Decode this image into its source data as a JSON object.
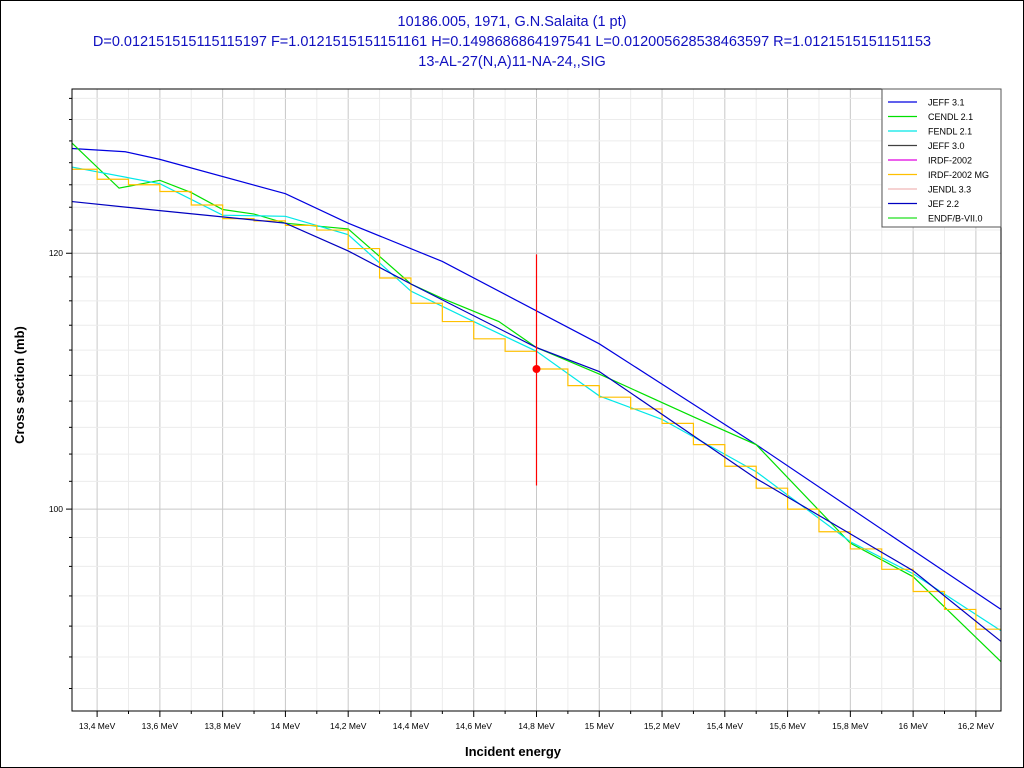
{
  "chart_data": {
    "type": "line",
    "title": [
      "10186.005, 1971, G.N.Salaita (1 pt)",
      "D=0.012151515115115197 F=1.0121515151151161 H=0.1498686864197541 L=0.012005628538463597 R=1.0121515151151153",
      "13-AL-27(N,A)11-NA-24,,SIG"
    ],
    "xlabel": "Incident energy",
    "ylabel": "Cross section (mb)",
    "xlim": [
      13.32,
      16.28
    ],
    "ylim": [
      86.6,
      134.9
    ],
    "yscale": "log",
    "grid": true,
    "legend_position": "top-right",
    "x_ticks": [
      {
        "v": 13.4,
        "label": "13,4 MeV"
      },
      {
        "v": 13.6,
        "label": "13,6 MeV"
      },
      {
        "v": 13.8,
        "label": "13,8 MeV"
      },
      {
        "v": 14.0,
        "label": "14 MeV"
      },
      {
        "v": 14.2,
        "label": "14,2 MeV"
      },
      {
        "v": 14.4,
        "label": "14,4 MeV"
      },
      {
        "v": 14.6,
        "label": "14,6 MeV"
      },
      {
        "v": 14.8,
        "label": "14,8 MeV"
      },
      {
        "v": 15.0,
        "label": "15 MeV"
      },
      {
        "v": 15.2,
        "label": "15,2 MeV"
      },
      {
        "v": 15.4,
        "label": "15,4 MeV"
      },
      {
        "v": 15.6,
        "label": "15,6 MeV"
      },
      {
        "v": 15.8,
        "label": "15,8 MeV"
      },
      {
        "v": 16.0,
        "label": "16 MeV"
      },
      {
        "v": 16.2,
        "label": "16,2 MeV"
      }
    ],
    "y_ticks": [
      {
        "v": 100,
        "label": "100"
      },
      {
        "v": 120,
        "label": "120"
      }
    ],
    "series": [
      {
        "name": "JEFF 3.1",
        "color": "#0000e0",
        "points": [
          [
            13.32,
            129.3
          ],
          [
            13.49,
            129.0
          ],
          [
            13.6,
            128.3
          ],
          [
            14.0,
            125.2
          ],
          [
            14.2,
            122.6
          ],
          [
            14.5,
            119.3
          ],
          [
            15.0,
            112.5
          ],
          [
            15.5,
            104.7
          ],
          [
            16.0,
            97.1
          ],
          [
            16.28,
            93.1
          ]
        ]
      },
      {
        "name": "CENDL 2.1",
        "color": "#00e000",
        "points": [
          [
            13.32,
            129.8
          ],
          [
            13.47,
            125.7
          ],
          [
            13.6,
            126.4
          ],
          [
            13.7,
            125.3
          ],
          [
            13.8,
            123.8
          ],
          [
            13.9,
            123.4
          ],
          [
            14.0,
            122.6
          ],
          [
            14.2,
            122.1
          ],
          [
            14.4,
            117.4
          ],
          [
            14.5,
            116.2
          ],
          [
            14.68,
            114.3
          ],
          [
            14.8,
            112.2
          ],
          [
            15.0,
            110.1
          ],
          [
            15.3,
            106.8
          ],
          [
            15.5,
            104.7
          ],
          [
            15.8,
            97.6
          ],
          [
            16.0,
            95.3
          ],
          [
            16.28,
            89.7
          ]
        ]
      },
      {
        "name": "FENDL 2.1",
        "color": "#00e8e8",
        "points": [
          [
            13.32,
            127.6
          ],
          [
            13.6,
            126.1
          ],
          [
            13.8,
            123.3
          ],
          [
            14.0,
            123.2
          ],
          [
            14.2,
            121.6
          ],
          [
            14.4,
            116.8
          ],
          [
            14.6,
            114.3
          ],
          [
            14.8,
            111.9
          ],
          [
            15.0,
            108.4
          ],
          [
            15.2,
            106.6
          ],
          [
            15.5,
            102.7
          ],
          [
            15.8,
            97.7
          ],
          [
            16.0,
            95.5
          ],
          [
            16.28,
            91.7
          ]
        ]
      },
      {
        "name": "JEFF 3.0",
        "color": "#404040",
        "points": []
      },
      {
        "name": "IRDF-2002",
        "color": "#e000e0",
        "points": []
      },
      {
        "name": "IRDF-2002 MG",
        "color": "#ffc000",
        "step": true,
        "edges": [
          13.32,
          13.4,
          13.5,
          13.6,
          13.7,
          13.8,
          13.9,
          14.0,
          14.1,
          14.2,
          14.3,
          14.4,
          14.5,
          14.6,
          14.7,
          14.8,
          14.9,
          15.0,
          15.1,
          15.2,
          15.3,
          15.4,
          15.5,
          15.6,
          15.7,
          15.8,
          15.9,
          16.0,
          16.1,
          16.2,
          16.28
        ],
        "values": [
          127.4,
          126.5,
          126.0,
          125.4,
          124.2,
          123.0,
          122.8,
          122.4,
          122.0,
          120.4,
          117.9,
          115.8,
          114.3,
          112.9,
          111.9,
          110.5,
          109.2,
          108.3,
          107.4,
          106.3,
          104.7,
          103.1,
          101.5,
          100.0,
          98.4,
          97.2,
          95.8,
          94.3,
          93.1,
          91.8
        ]
      },
      {
        "name": "JENDL 3.3",
        "color": "#f0b8b8",
        "points": []
      },
      {
        "name": "JEF 2.2",
        "color": "#0000c0",
        "points": [
          [
            13.32,
            124.5
          ],
          [
            13.6,
            123.7
          ],
          [
            14.0,
            122.6
          ],
          [
            14.2,
            120.2
          ],
          [
            14.4,
            117.4
          ],
          [
            14.8,
            112.2
          ],
          [
            15.0,
            110.3
          ],
          [
            15.5,
            102.2
          ],
          [
            16.0,
            95.7
          ],
          [
            16.28,
            91.0
          ]
        ]
      },
      {
        "name": "ENDF/B-VII.0",
        "color": "#20e020",
        "points": []
      }
    ],
    "experimental": {
      "name": "G.N.Salaita 1971",
      "color": "#ff0000",
      "x": 14.8,
      "y": 110.5,
      "y_low": 101.7,
      "y_high": 119.9
    }
  }
}
